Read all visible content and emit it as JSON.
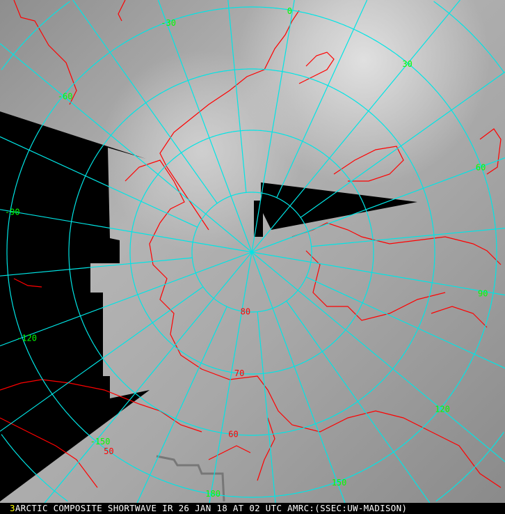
{
  "caption": {
    "frame_number": "3",
    "text": "ARCTIC COMPOSITE SHORTWAVE IR 26 JAN 18 AT 02 UTC AMRC:(SSEC:UW-MADISON)"
  },
  "map": {
    "projection": "polar-stereographic",
    "colors": {
      "graticule": "#00e5e5",
      "coastline": "#ff0000",
      "lon_label": "#00ff00",
      "lat_label": "#ff0000",
      "no_data": "#000000"
    },
    "meridian_labels": [
      {
        "lon": -30,
        "text": "-30"
      },
      {
        "lon": 0,
        "text": "0"
      },
      {
        "lon": 30,
        "text": "30"
      },
      {
        "lon": -60,
        "text": "-60"
      },
      {
        "lon": 60,
        "text": "60"
      },
      {
        "lon": -90,
        "text": "-90"
      },
      {
        "lon": 90,
        "text": "90"
      },
      {
        "lon": -120,
        "text": "-120"
      },
      {
        "lon": 120,
        "text": "120"
      },
      {
        "lon": -150,
        "text": "-150"
      },
      {
        "lon": 150,
        "text": "150"
      },
      {
        "lon": 180,
        "text": "180"
      }
    ],
    "latitude_labels": [
      {
        "lat": 80,
        "text": "80"
      },
      {
        "lat": 70,
        "text": "70"
      },
      {
        "lat": 60,
        "text": "60"
      },
      {
        "lat": 50,
        "text": "50"
      }
    ]
  }
}
